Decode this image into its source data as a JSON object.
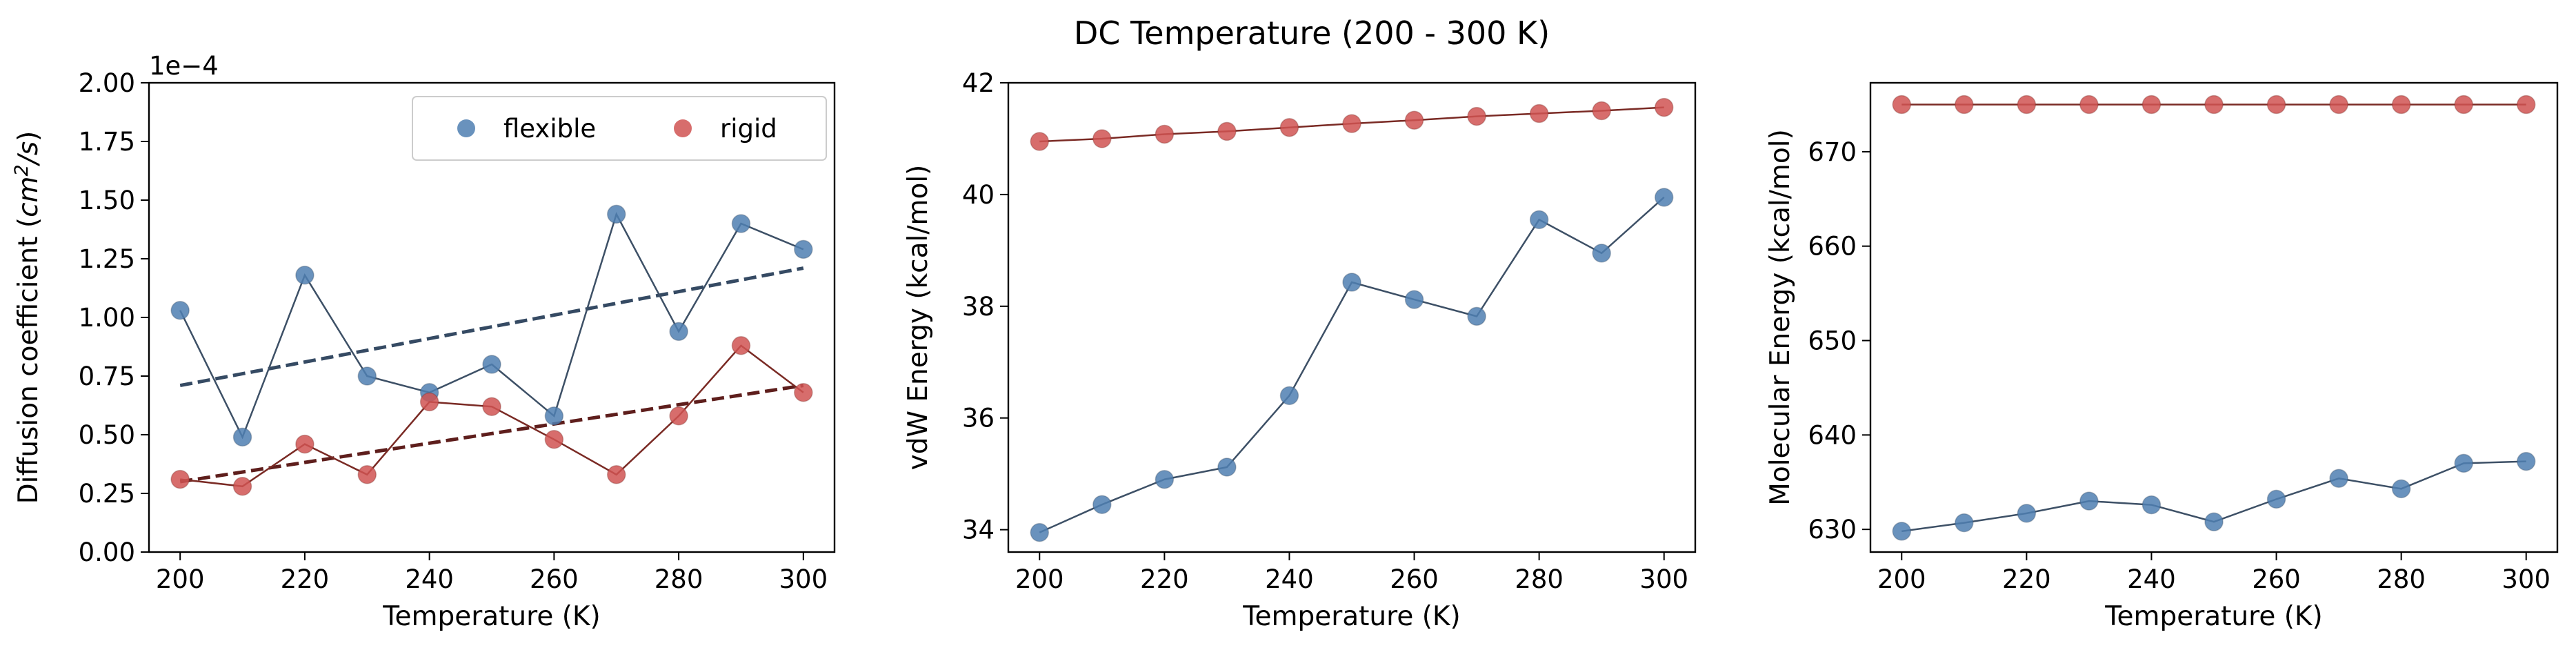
{
  "figure": {
    "suptitle": "DC Temperature (200 - 300 K)"
  },
  "colors": {
    "flexible_marker": "#4f7fb2",
    "rigid_marker": "#d05452",
    "flexible_line": "#3d5066",
    "rigid_line": "#7a2a24",
    "flexible_fit": "#354a63",
    "rigid_fit": "#5e1e1c"
  },
  "chart_data": [
    {
      "type": "line",
      "xlabel": "Temperature (K)",
      "ylabel": "Diffusion coefficient (cm²/s)",
      "ylabel_parts": {
        "prefix": "Diffusion coefficient (",
        "base": "cm",
        "sup": "2",
        "suffix": "/s)"
      },
      "offset_text": "1e−4",
      "xlim": [
        195,
        305
      ],
      "ylim": [
        0,
        2.0
      ],
      "xticks": [
        200,
        220,
        240,
        260,
        280,
        300
      ],
      "yticks": [
        0.0,
        0.25,
        0.5,
        0.75,
        1.0,
        1.25,
        1.5,
        1.75,
        2.0
      ],
      "ytick_labels": [
        "0.00",
        "0.25",
        "0.50",
        "0.75",
        "1.00",
        "1.25",
        "1.50",
        "1.75",
        "2.00"
      ],
      "legend": {
        "position": "top-right",
        "entries": [
          "flexible",
          "rigid"
        ]
      },
      "x": [
        200,
        210,
        220,
        230,
        240,
        250,
        260,
        270,
        280,
        290,
        300
      ],
      "series": [
        {
          "name": "flexible",
          "values": [
            1.03,
            0.49,
            1.18,
            0.75,
            0.68,
            0.8,
            0.58,
            1.44,
            0.94,
            1.4,
            1.29
          ],
          "fit": [
            0.71,
            1.21
          ]
        },
        {
          "name": "rigid",
          "values": [
            0.31,
            0.28,
            0.46,
            0.33,
            0.64,
            0.62,
            0.48,
            0.33,
            0.58,
            0.88,
            0.68
          ],
          "fit": [
            0.3,
            0.71
          ]
        }
      ]
    },
    {
      "type": "line",
      "xlabel": "Temperature (K)",
      "ylabel": "vdW Energy (kcal/mol)",
      "xlim": [
        195,
        305
      ],
      "ylim": [
        33.6,
        42
      ],
      "xticks": [
        200,
        220,
        240,
        260,
        280,
        300
      ],
      "yticks": [
        34,
        36,
        38,
        40,
        42
      ],
      "ytick_labels": [
        "34",
        "36",
        "38",
        "40",
        "42"
      ],
      "x": [
        200,
        210,
        220,
        230,
        240,
        250,
        260,
        270,
        280,
        290,
        300
      ],
      "series": [
        {
          "values": [
            33.95,
            34.45,
            34.9,
            35.12,
            36.4,
            38.43,
            38.12,
            37.82,
            39.55,
            38.95,
            39.95
          ]
        },
        {
          "values": [
            40.95,
            41.0,
            41.08,
            41.13,
            41.2,
            41.27,
            41.33,
            41.4,
            41.45,
            41.5,
            41.56
          ]
        }
      ]
    },
    {
      "type": "line",
      "xlabel": "Temperature (K)",
      "ylabel": "Molecular Energy (kcal/mol)",
      "xlim": [
        195,
        305
      ],
      "ylim": [
        627.6,
        677.3
      ],
      "xticks": [
        200,
        220,
        240,
        260,
        280,
        300
      ],
      "yticks": [
        630,
        640,
        650,
        660,
        670
      ],
      "ytick_labels": [
        "630",
        "640",
        "650",
        "660",
        "670"
      ],
      "x": [
        200,
        210,
        220,
        230,
        240,
        250,
        260,
        270,
        280,
        290,
        300
      ],
      "series": [
        {
          "values": [
            629.8,
            630.7,
            631.7,
            633.0,
            632.6,
            630.8,
            633.2,
            635.4,
            634.3,
            637.0,
            637.2
          ]
        },
        {
          "values": [
            675.0,
            675.0,
            675.0,
            675.0,
            675.0,
            675.0,
            675.0,
            675.0,
            675.0,
            675.0,
            675.0
          ]
        }
      ]
    }
  ]
}
